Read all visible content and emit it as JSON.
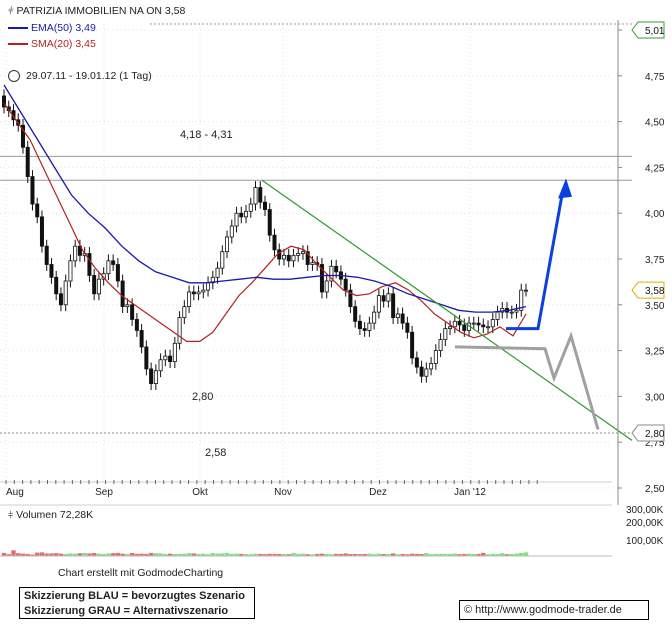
{
  "header": {
    "title": "PATRIZIA IMMOBILIEN NA ON 3,58",
    "indicators": [
      {
        "label": "EMA(50) 3,49",
        "color": "#1a1aa8"
      },
      {
        "label": "SMA(20) 3,45",
        "color": "#b22222"
      }
    ],
    "period": "29.07.11 - 19.01.12 (1 Tag)"
  },
  "price_labels": {
    "resistance": "4,18 - 4,31",
    "support_280": "2,80",
    "support_258": "2,58",
    "last_price": "3,58",
    "top_price": "5,01",
    "badge_280": "2,80"
  },
  "volume_title": "Volumen 72,28K",
  "credit": "Chart erstellt mit GodmodeCharting",
  "scenario_notes": {
    "blue": "Skizzierung BLAU = bevorzugtes Szenario",
    "grey": "Skizzierung GRAU = Alternativszenario"
  },
  "copyright": "© http://www.godmode-trader.de",
  "colors": {
    "ema": "#1a1aa8",
    "sma": "#b22222",
    "trendline": "#2e9a2e",
    "scenario_blue": "#0a3fe0",
    "scenario_grey": "#a0a0a0",
    "volume_up": "#7fe07f",
    "volume_down": "#e07070"
  },
  "chart_data": {
    "type": "candlestick",
    "title": "PATRIZIA IMMOBILIEN NA ON 3,58",
    "x_labels": [
      "Aug",
      "Sep",
      "Okt",
      "Nov",
      "Dez",
      "Jan '12"
    ],
    "y_ticks": [
      "5,00",
      "4,75",
      "4,50",
      "4,25",
      "4,00",
      "3,75",
      "3,50",
      "3,25",
      "3,00",
      "2,75",
      "2,50"
    ],
    "volume_ticks": [
      "300,00K",
      "200,00K",
      "100,00K"
    ],
    "ylim": [
      2.5,
      5.0
    ],
    "last_close": 3.58,
    "closes": [
      4.58,
      4.56,
      4.51,
      4.48,
      4.36,
      4.2,
      4.05,
      3.98,
      3.82,
      3.72,
      3.65,
      3.56,
      3.5,
      3.63,
      3.74,
      3.82,
      3.77,
      3.78,
      3.66,
      3.56,
      3.64,
      3.67,
      3.74,
      3.72,
      3.63,
      3.49,
      3.5,
      3.42,
      3.36,
      3.27,
      3.15,
      3.07,
      3.14,
      3.2,
      3.22,
      3.19,
      3.29,
      3.43,
      3.49,
      3.57,
      3.56,
      3.57,
      3.58,
      3.62,
      3.65,
      3.7,
      3.79,
      3.87,
      3.93,
      4.0,
      3.98,
      4.01,
      4.05,
      4.14,
      4.06,
      4.02,
      3.88,
      3.8,
      3.75,
      3.77,
      3.74,
      3.77,
      3.78,
      3.79,
      3.72,
      3.73,
      3.72,
      3.57,
      3.63,
      3.71,
      3.68,
      3.64,
      3.58,
      3.49,
      3.41,
      3.37,
      3.36,
      3.4,
      3.46,
      3.55,
      3.52,
      3.56,
      3.43,
      3.45,
      3.4,
      3.35,
      3.21,
      3.16,
      3.11,
      3.15,
      3.18,
      3.25,
      3.31,
      3.37,
      3.38,
      3.41,
      3.39,
      3.36,
      3.4,
      3.4,
      3.39,
      3.38,
      3.38,
      3.42,
      3.46,
      3.48,
      3.46,
      3.46,
      3.47,
      3.58,
      3.58
    ],
    "sma20": [
      4.6,
      4.5,
      4.4,
      4.25,
      4.1,
      3.95,
      3.8,
      3.7,
      3.62,
      3.55,
      3.5,
      3.45,
      3.4,
      3.35,
      3.3,
      3.3,
      3.35,
      3.45,
      3.55,
      3.62,
      3.7,
      3.78,
      3.82,
      3.8,
      3.72,
      3.65,
      3.58,
      3.55,
      3.56,
      3.6,
      3.62,
      3.58,
      3.52,
      3.45,
      3.4,
      3.35,
      3.32,
      3.34,
      3.38,
      3.33,
      3.45
    ],
    "ema50": [
      4.7,
      4.55,
      4.4,
      4.25,
      4.1,
      4.0,
      3.92,
      3.82,
      3.74,
      3.68,
      3.65,
      3.62,
      3.62,
      3.63,
      3.64,
      3.65,
      3.64,
      3.64,
      3.65,
      3.66,
      3.66,
      3.65,
      3.63,
      3.6,
      3.56,
      3.53,
      3.5,
      3.47,
      3.46,
      3.46,
      3.47,
      3.49
    ],
    "volumes": [
      60,
      35,
      110,
      55,
      45,
      40,
      28,
      65,
      70,
      48,
      50,
      55,
      45,
      40,
      50,
      45,
      55,
      60,
      50,
      58,
      45,
      40,
      50,
      55,
      60,
      45,
      40,
      58,
      42,
      45,
      40,
      60,
      55,
      52,
      40,
      45,
      38,
      40,
      42,
      55,
      50,
      40,
      45,
      35,
      55,
      48,
      50,
      60,
      42,
      45,
      40,
      38,
      35,
      45,
      40,
      35,
      42,
      40,
      40,
      38,
      35,
      60,
      40,
      45,
      35,
      30,
      40,
      45,
      38,
      35,
      42,
      40,
      50,
      38,
      40,
      35,
      40,
      45,
      35,
      45,
      38,
      40,
      50,
      35,
      40,
      32,
      45,
      40,
      38,
      55,
      35,
      40,
      42,
      38,
      40,
      48,
      35,
      40,
      45,
      38,
      40,
      60,
      35,
      42,
      40,
      55,
      35,
      40,
      45,
      60,
      70
    ],
    "annotations": [
      {
        "label": "4,18 - 4,31",
        "values": [
          4.18,
          4.31
        ]
      },
      {
        "label": "2,80",
        "value": 2.8
      },
      {
        "label": "2,58",
        "value": 2.58
      }
    ]
  }
}
